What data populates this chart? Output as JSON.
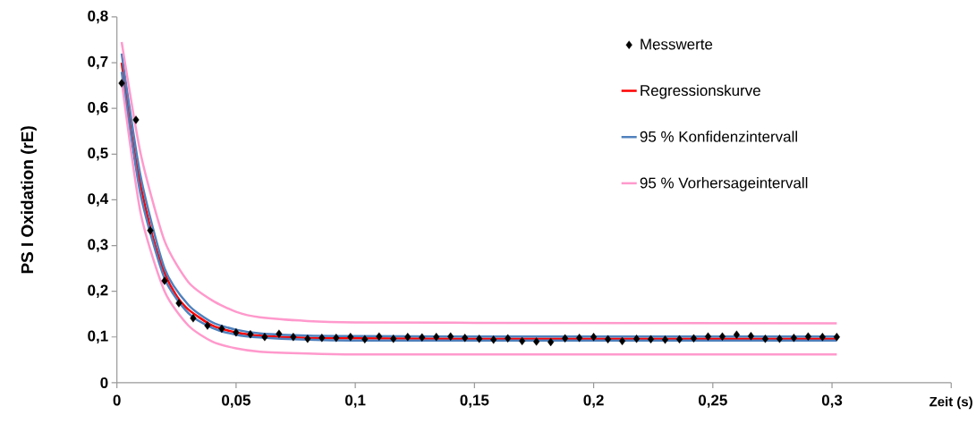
{
  "chart_data": {
    "type": "scatter",
    "xlabel": "Zeit (s)",
    "ylabel": "PS I Oxidation (rE)",
    "xlim": [
      0,
      0.35
    ],
    "ylim": [
      0,
      0.8
    ],
    "xticks": [
      {
        "value": 0,
        "label": "0"
      },
      {
        "value": 0.05,
        "label": "0,05"
      },
      {
        "value": 0.1,
        "label": "0,1"
      },
      {
        "value": 0.15,
        "label": "0,15"
      },
      {
        "value": 0.2,
        "label": "0,2"
      },
      {
        "value": 0.25,
        "label": "0,25"
      },
      {
        "value": 0.3,
        "label": "0,3"
      },
      {
        "value": 0.35,
        "label": null
      }
    ],
    "yticks": [
      {
        "value": 0,
        "label": "0"
      },
      {
        "value": 0.1,
        "label": "0,1"
      },
      {
        "value": 0.2,
        "label": "0,2"
      },
      {
        "value": 0.3,
        "label": "0,3"
      },
      {
        "value": 0.4,
        "label": "0,4"
      },
      {
        "value": 0.5,
        "label": "0,5"
      },
      {
        "value": 0.6,
        "label": "0,6"
      },
      {
        "value": 0.7,
        "label": "0,7"
      },
      {
        "value": 0.8,
        "label": "0,8"
      }
    ],
    "grid": false,
    "legend": "top right",
    "series": [
      {
        "name": "Messwerte",
        "marker": "diamond",
        "color": "#000000",
        "x": [
          0.002,
          0.008,
          0.014,
          0.02,
          0.026,
          0.032,
          0.038,
          0.044,
          0.05,
          0.056,
          0.062,
          0.068,
          0.074,
          0.08,
          0.086,
          0.092,
          0.098,
          0.104,
          0.11,
          0.116,
          0.122,
          0.128,
          0.134,
          0.14,
          0.146,
          0.152,
          0.158,
          0.164,
          0.17,
          0.176,
          0.182,
          0.188,
          0.194,
          0.2,
          0.206,
          0.212,
          0.218,
          0.224,
          0.23,
          0.236,
          0.242,
          0.248,
          0.254,
          0.26,
          0.266,
          0.272,
          0.278,
          0.284,
          0.29,
          0.296,
          0.302
        ],
        "values": [
          0.655,
          0.575,
          0.333,
          0.223,
          0.174,
          0.141,
          0.125,
          0.118,
          0.11,
          0.106,
          0.1,
          0.107,
          0.1,
          0.096,
          0.098,
          0.098,
          0.1,
          0.095,
          0.101,
          0.096,
          0.1,
          0.099,
          0.1,
          0.101,
          0.098,
          0.096,
          0.094,
          0.097,
          0.091,
          0.09,
          0.089,
          0.097,
          0.098,
          0.1,
          0.095,
          0.091,
          0.096,
          0.095,
          0.094,
          0.095,
          0.097,
          0.101,
          0.101,
          0.105,
          0.102,
          0.096,
          0.096,
          0.098,
          0.101,
          0.1,
          0.1
        ]
      },
      {
        "name": "Regressionskurve",
        "type": "line",
        "marker": "none",
        "color": "#ff0000",
        "x": [
          0.002,
          0.006,
          0.01,
          0.015,
          0.02,
          0.025,
          0.03,
          0.04,
          0.05,
          0.06,
          0.08,
          0.1,
          0.15,
          0.302
        ],
        "values": [
          0.7,
          0.55,
          0.43,
          0.32,
          0.24,
          0.19,
          0.16,
          0.125,
          0.11,
          0.103,
          0.098,
          0.097,
          0.096,
          0.096
        ]
      },
      {
        "name": "95 % Konfidenzintervall",
        "type": "line",
        "marker": "none",
        "color": "#4f81bd",
        "x": [
          0.002,
          0.01,
          0.02,
          0.03,
          0.04,
          0.05,
          0.06,
          0.08,
          0.1,
          0.15,
          0.302
        ],
        "values": [
          0.72,
          0.45,
          0.25,
          0.17,
          0.132,
          0.116,
          0.108,
          0.103,
          0.102,
          0.101,
          0.101
        ]
      },
      {
        "type": "line",
        "marker": "none",
        "color": "#4f81bd",
        "x": [
          0.002,
          0.01,
          0.02,
          0.03,
          0.04,
          0.05,
          0.06,
          0.08,
          0.1,
          0.15,
          0.302
        ],
        "values": [
          0.68,
          0.41,
          0.228,
          0.152,
          0.12,
          0.105,
          0.099,
          0.094,
          0.092,
          0.092,
          0.092
        ]
      },
      {
        "name": "95 % Vorhersageintervall",
        "type": "line",
        "marker": "none",
        "color": "#ff99cc",
        "x": [
          0.002,
          0.01,
          0.02,
          0.03,
          0.04,
          0.05,
          0.06,
          0.08,
          0.1,
          0.15,
          0.302
        ],
        "values": [
          0.745,
          0.5,
          0.31,
          0.22,
          0.18,
          0.155,
          0.143,
          0.135,
          0.132,
          0.131,
          0.13
        ]
      },
      {
        "type": "line",
        "marker": "none",
        "color": "#ff99cc",
        "x": [
          0.002,
          0.01,
          0.02,
          0.03,
          0.04,
          0.05,
          0.06,
          0.08,
          0.1,
          0.15,
          0.302
        ],
        "values": [
          0.66,
          0.37,
          0.2,
          0.125,
          0.09,
          0.075,
          0.068,
          0.064,
          0.062,
          0.062,
          0.062
        ]
      }
    ]
  }
}
